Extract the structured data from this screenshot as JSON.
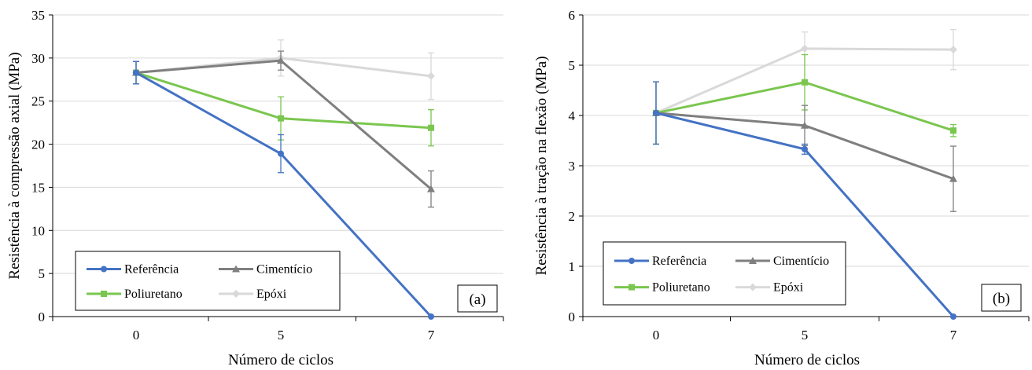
{
  "colors": {
    "Referência": "#4472c4",
    "Cimentício": "#7f7f7f",
    "Poliuretano": "#7ac64f",
    "Epóxi": "#d9d9d9"
  },
  "chart_data": [
    {
      "type": "line",
      "panel_label": "(a)",
      "xlabel": "Número de ciclos",
      "ylabel": "Resistência à compressão axial (MPa)",
      "categories": [
        "0",
        "5",
        "7"
      ],
      "ylim": [
        0,
        35
      ],
      "yticks": [
        0,
        5,
        10,
        15,
        20,
        25,
        30,
        35
      ],
      "grid": true,
      "legend_position": "bottom-left",
      "series": [
        {
          "name": "Referência",
          "marker": "circle",
          "values": [
            28.3,
            18.9,
            0
          ],
          "errors": [
            1.3,
            2.2,
            0
          ]
        },
        {
          "name": "Cimentício",
          "marker": "triangle",
          "values": [
            28.3,
            29.7,
            14.8
          ],
          "errors": [
            1.3,
            1.1,
            2.1
          ]
        },
        {
          "name": "Poliuretano",
          "marker": "square",
          "values": [
            28.3,
            23.0,
            21.9
          ],
          "errors": [
            1.3,
            2.5,
            2.1
          ]
        },
        {
          "name": "Epóxi",
          "marker": "diamond",
          "values": [
            28.3,
            30.0,
            27.9
          ],
          "errors": [
            1.3,
            2.1,
            2.7
          ]
        }
      ]
    },
    {
      "type": "line",
      "panel_label": "(b)",
      "xlabel": "Número de ciclos",
      "ylabel": "Resistência à tração na flexão (MPa)",
      "categories": [
        "0",
        "5",
        "7"
      ],
      "ylim": [
        0,
        6
      ],
      "yticks": [
        0,
        1,
        2,
        3,
        4,
        5,
        6
      ],
      "grid": true,
      "legend_position": "bottom-left",
      "series": [
        {
          "name": "Referência",
          "marker": "circle",
          "values": [
            4.05,
            3.33,
            0
          ],
          "errors": [
            0.62,
            0.1,
            0
          ]
        },
        {
          "name": "Cimentício",
          "marker": "triangle",
          "values": [
            4.05,
            3.8,
            2.74
          ],
          "errors": [
            0.62,
            0.4,
            0.65
          ]
        },
        {
          "name": "Poliuretano",
          "marker": "square",
          "values": [
            4.05,
            4.66,
            3.7
          ],
          "errors": [
            0.62,
            0.55,
            0.12
          ]
        },
        {
          "name": "Epóxi",
          "marker": "diamond",
          "values": [
            4.05,
            5.33,
            5.31
          ],
          "errors": [
            0.62,
            0.33,
            0.4
          ]
        }
      ]
    }
  ]
}
